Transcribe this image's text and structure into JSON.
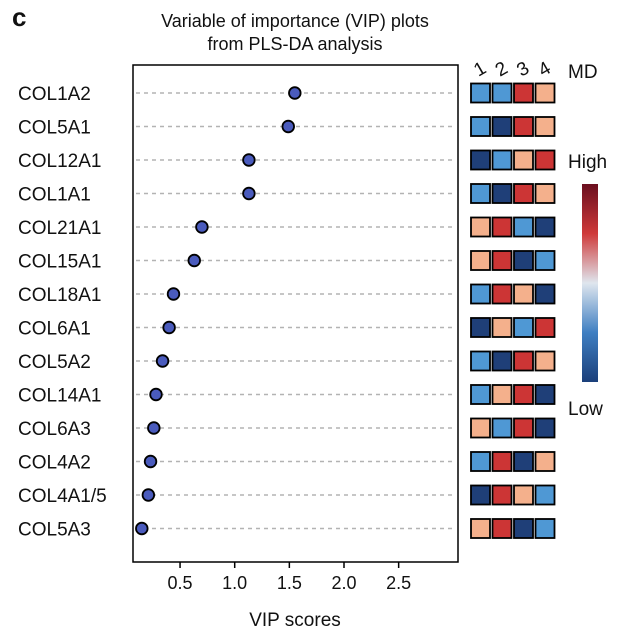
{
  "panel_label": "c",
  "chart_data": {
    "type": "scatter",
    "title": "Variable of importance (VIP) plots",
    "subtitle": "from PLS-DA analysis",
    "xlabel": "VIP scores",
    "ylabel": "",
    "xlim": [
      0.0,
      2.95
    ],
    "xticks": [
      "0.5",
      "1.0",
      "1.5",
      "2.0",
      "2.5"
    ],
    "grid": "horizontal dashed",
    "point_color": "#4a5bbd",
    "categories": [
      "COL1A2",
      "COL5A1",
      "COL12A1",
      "COL1A1",
      "COL21A1",
      "COL15A1",
      "COL18A1",
      "COL6A1",
      "COL5A2",
      "COL14A1",
      "COL6A3",
      "COL4A2",
      "COL4A1/5",
      "COL5A3"
    ],
    "values": [
      1.55,
      1.49,
      1.13,
      1.13,
      0.7,
      0.63,
      0.44,
      0.4,
      0.34,
      0.28,
      0.26,
      0.23,
      0.21,
      0.15
    ],
    "heatmap": {
      "columns": [
        "1",
        "2",
        "3",
        "4"
      ],
      "column_title": "MD",
      "levels": [
        [
          0.25,
          0.3,
          0.92,
          0.68
        ],
        [
          0.2,
          0.05,
          0.92,
          0.68
        ],
        [
          0.05,
          0.25,
          0.68,
          0.92
        ],
        [
          0.22,
          0.05,
          0.92,
          0.68
        ],
        [
          0.68,
          0.92,
          0.22,
          0.05
        ],
        [
          0.68,
          0.92,
          0.05,
          0.22
        ],
        [
          0.22,
          0.92,
          0.68,
          0.05
        ],
        [
          0.05,
          0.68,
          0.22,
          0.92
        ],
        [
          0.22,
          0.05,
          0.92,
          0.68
        ],
        [
          0.22,
          0.68,
          0.92,
          0.05
        ],
        [
          0.68,
          0.22,
          0.92,
          0.05
        ],
        [
          0.22,
          0.92,
          0.05,
          0.68
        ],
        [
          0.05,
          0.92,
          0.68,
          0.22
        ],
        [
          0.68,
          0.92,
          0.05,
          0.22
        ]
      ]
    },
    "colorbar": {
      "high_label": "High",
      "low_label": "Low",
      "colors": [
        "#1b3f7a",
        "#3f7fc2",
        "#dfe6ee",
        "#cf3a3a",
        "#6b0f1f"
      ]
    }
  }
}
